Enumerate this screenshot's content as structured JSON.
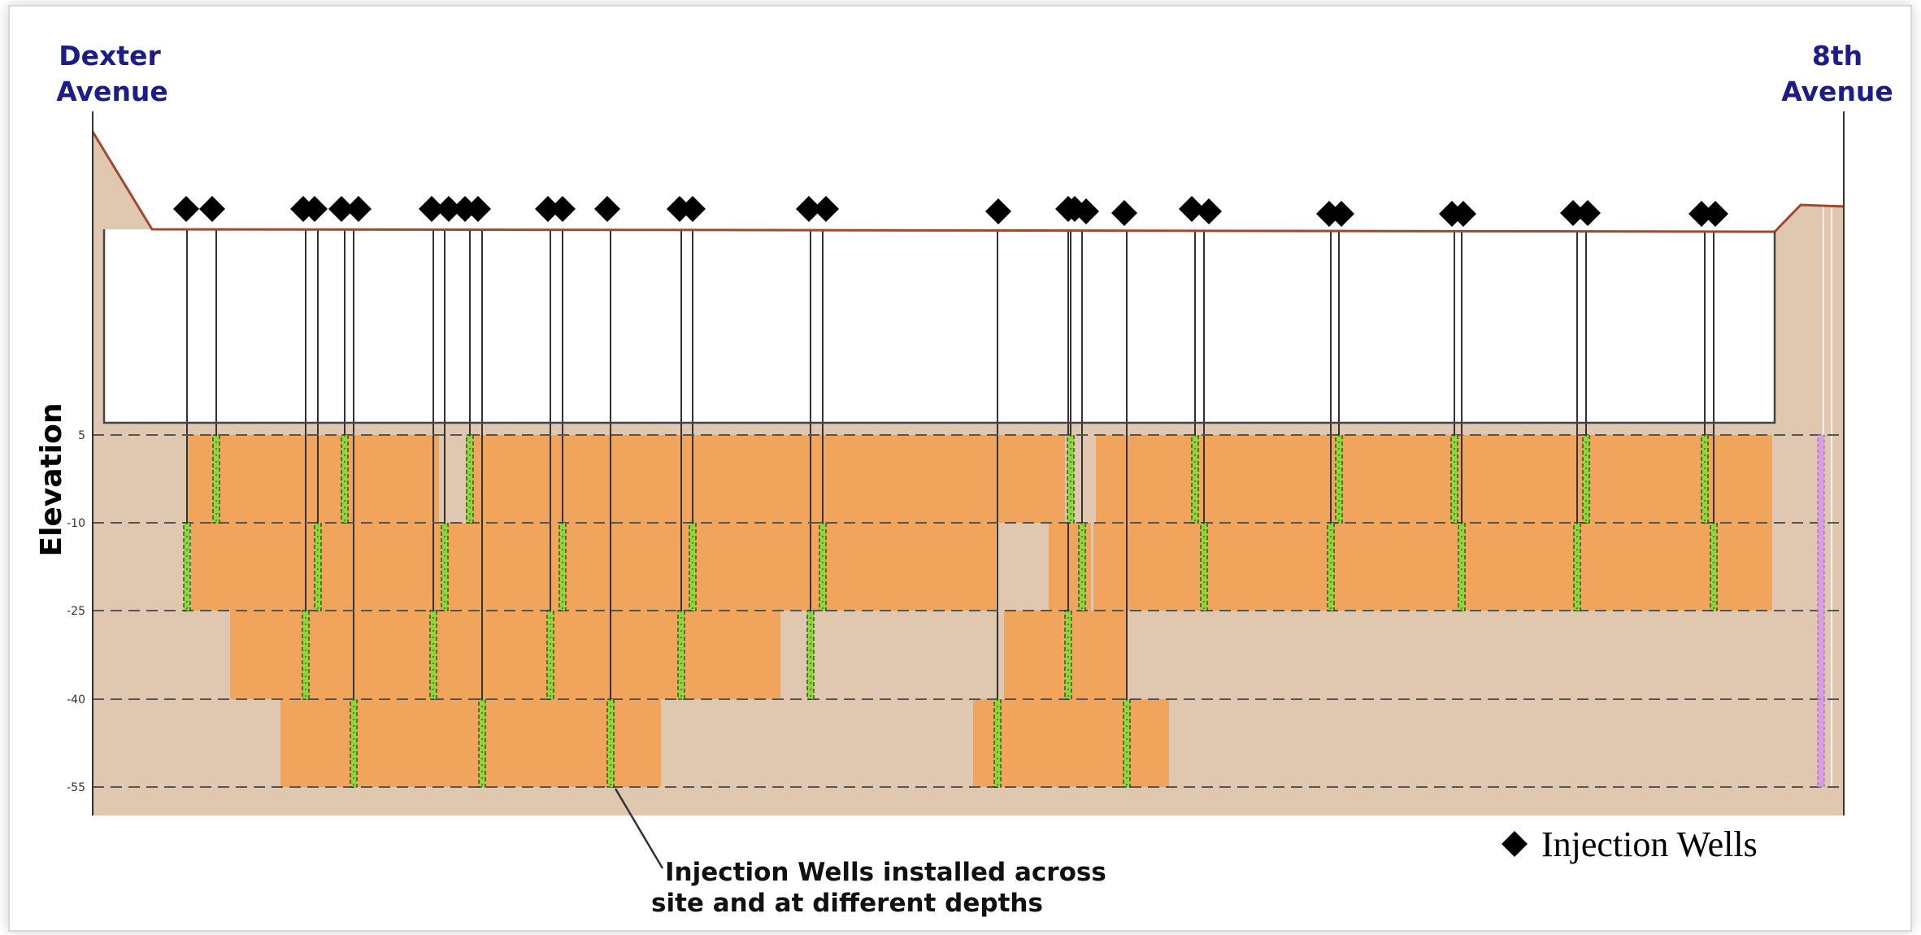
{
  "labels": {
    "left_street_line1": "Dexter",
    "left_street_line2": "Avenue",
    "right_street_line1": "8th",
    "right_street_line2": "Avenue",
    "y_axis_title": "Elevation",
    "annotation_line1": "Injection Wells installed across",
    "annotation_line2": "site and at different depths",
    "legend_label": "Injection Wells"
  },
  "colors": {
    "soil": "#e0c8b0",
    "treatment_zone": "#f0a45c",
    "ground_surface": "#a0492e",
    "screen_fill": "#8fd63e",
    "screen_outline": "#1a3a10",
    "monitoring_screen": "#d6a0e0",
    "gridline": "#555555",
    "marker": "#000000",
    "street_label": "#1c1c8a"
  },
  "chart_data": {
    "type": "cross-section",
    "y_ticks": [
      "5",
      "-10",
      "-25",
      "-40",
      "-55"
    ],
    "y_values": [
      5,
      -10,
      -25,
      -40,
      -55
    ],
    "layers": [
      {
        "top": 5,
        "bottom": -10
      },
      {
        "top": -10,
        "bottom": -25
      },
      {
        "top": -25,
        "bottom": -40
      },
      {
        "top": -40,
        "bottom": -55
      }
    ],
    "legend": {
      "symbol": "diamond",
      "label": "Injection Wells",
      "placement": "bottom-right"
    }
  }
}
